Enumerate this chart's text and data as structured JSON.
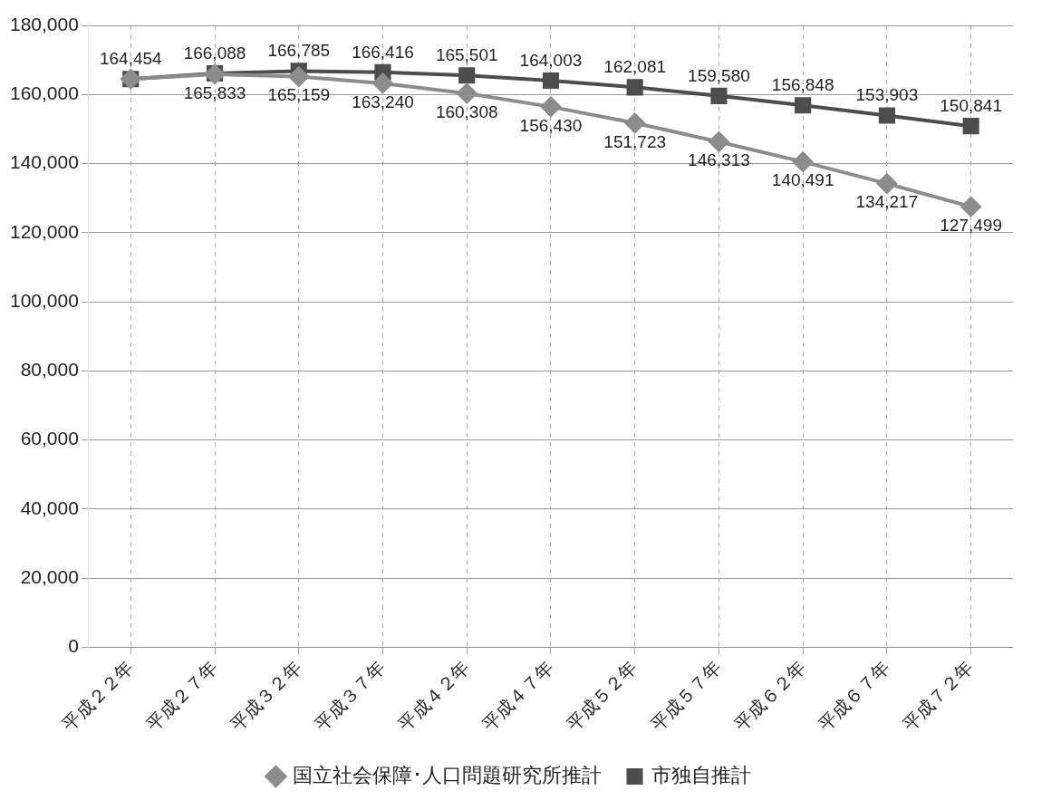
{
  "chart_data": {
    "type": "line",
    "categories": [
      "平成２２年",
      "平成２７年",
      "平成３２年",
      "平成３７年",
      "平成４２年",
      "平成４７年",
      "平成５２年",
      "平成５７年",
      "平成６２年",
      "平成６７年",
      "平成７２年"
    ],
    "series": [
      {
        "name": "国立社会保障･人口問題研究所推計",
        "color": "#8c8c8c",
        "marker": "diamond",
        "values": [
          164454,
          165833,
          165159,
          163240,
          160308,
          156430,
          151723,
          146313,
          140491,
          134217,
          127499
        ],
        "value_labels": [
          null,
          "165,833",
          "165,159",
          "163,240",
          "160,308",
          "156,430",
          "151,723",
          "146,313",
          "140,491",
          "134,217",
          "127,499"
        ]
      },
      {
        "name": "市独自推計",
        "color": "#4d4d4d",
        "marker": "square",
        "values": [
          164454,
          166088,
          166785,
          166416,
          165501,
          164003,
          162081,
          159580,
          156848,
          153903,
          150841
        ],
        "value_labels": [
          "164,454",
          "166,088",
          "166,785",
          "166,416",
          "165,501",
          "164,003",
          "162,081",
          "159,580",
          "156,848",
          "153,903",
          "150,841"
        ]
      }
    ],
    "ylim": [
      0,
      180000
    ],
    "yticks": [
      {
        "value": 0,
        "label": "0"
      },
      {
        "value": 20000,
        "label": "20,000"
      },
      {
        "value": 40000,
        "label": "40,000"
      },
      {
        "value": 60000,
        "label": "60,000"
      },
      {
        "value": 80000,
        "label": "80,000"
      },
      {
        "value": 100000,
        "label": "100,000"
      },
      {
        "value": 120000,
        "label": "120,000"
      },
      {
        "value": 140000,
        "label": "140,000"
      },
      {
        "value": 160000,
        "label": "160,000"
      },
      {
        "value": 180000,
        "label": "180,000"
      }
    ],
    "grid": true,
    "legend": "bottom",
    "line_style": "solid"
  }
}
